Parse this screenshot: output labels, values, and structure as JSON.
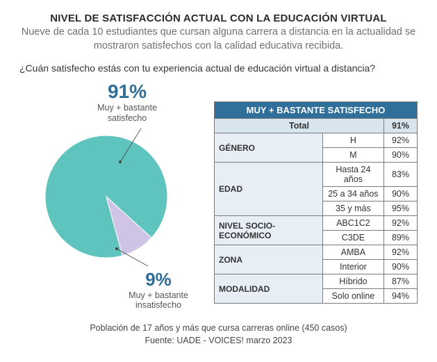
{
  "header": {
    "title": "NIVEL DE SATISFACCIÓN ACTUAL CON LA EDUCACIÓN VIRTUAL",
    "subtitle": "Nueve de cada 10 estudiantes que cursan alguna carrera a distancia en la actualidad se mostraron satisfechos con la calidad educativa recibida."
  },
  "question": "¿Cuán satisfecho estás con tu experiencia actual de educación virtual a distancia?",
  "pie": {
    "type": "pie",
    "slices": [
      {
        "label": "Muy + bastante satisfecho",
        "value": 91,
        "color": "#5fc4bd"
      },
      {
        "label": "Muy + bastante insatisfecho",
        "value": 9,
        "color": "#cfc3e6"
      }
    ],
    "stroke": "#ffffff",
    "stroke_width": 1,
    "radius": 88,
    "pct_color": "#2f6f9a",
    "pct_fontsize": 28,
    "label_fontsize": 12.5,
    "leader_color": "#444",
    "top_pct": "91%",
    "top_label_l1": "Muy + bastante",
    "top_label_l2": "satisfecho",
    "bot_pct": "9%",
    "bot_label_l1": "Muy + bastante",
    "bot_label_l2": "insatisfecho"
  },
  "table": {
    "header": "MUY + BASTANTE SATISFECHO",
    "header_bg": "#2f6f9a",
    "header_fg": "#ffffff",
    "subheader_bg": "#d8e4ee",
    "cat_bg": "#e7eef5",
    "border_color": "#7a7a7a",
    "total_label": "Total",
    "total_value": "91%",
    "groups": [
      {
        "cat": "GÉNERO",
        "rows": [
          {
            "label": "H",
            "value": "92%"
          },
          {
            "label": "M",
            "value": "90%"
          }
        ]
      },
      {
        "cat": "EDAD",
        "rows": [
          {
            "label": "Hasta 24 años",
            "value": "83%"
          },
          {
            "label": "25 a 34 años",
            "value": "90%"
          },
          {
            "label": "35 y más",
            "value": "95%"
          }
        ]
      },
      {
        "cat": "NIVEL SOCIO-ECONÓMICO",
        "rows": [
          {
            "label": "ABC1C2",
            "value": "92%"
          },
          {
            "label": "C3DE",
            "value": "89%"
          }
        ]
      },
      {
        "cat": "ZONA",
        "rows": [
          {
            "label": "AMBA",
            "value": "92%"
          },
          {
            "label": "Interior",
            "value": "90%"
          }
        ]
      },
      {
        "cat": "MODALIDAD",
        "rows": [
          {
            "label": "Híbrido",
            "value": "87%"
          },
          {
            "label": "Solo online",
            "value": "94%"
          }
        ]
      }
    ]
  },
  "footer": {
    "line1": "Población de 17 años y más que cursa carreras online (450 casos)",
    "line2": "Fuente: UADE - VOICES! marzo 2023"
  }
}
